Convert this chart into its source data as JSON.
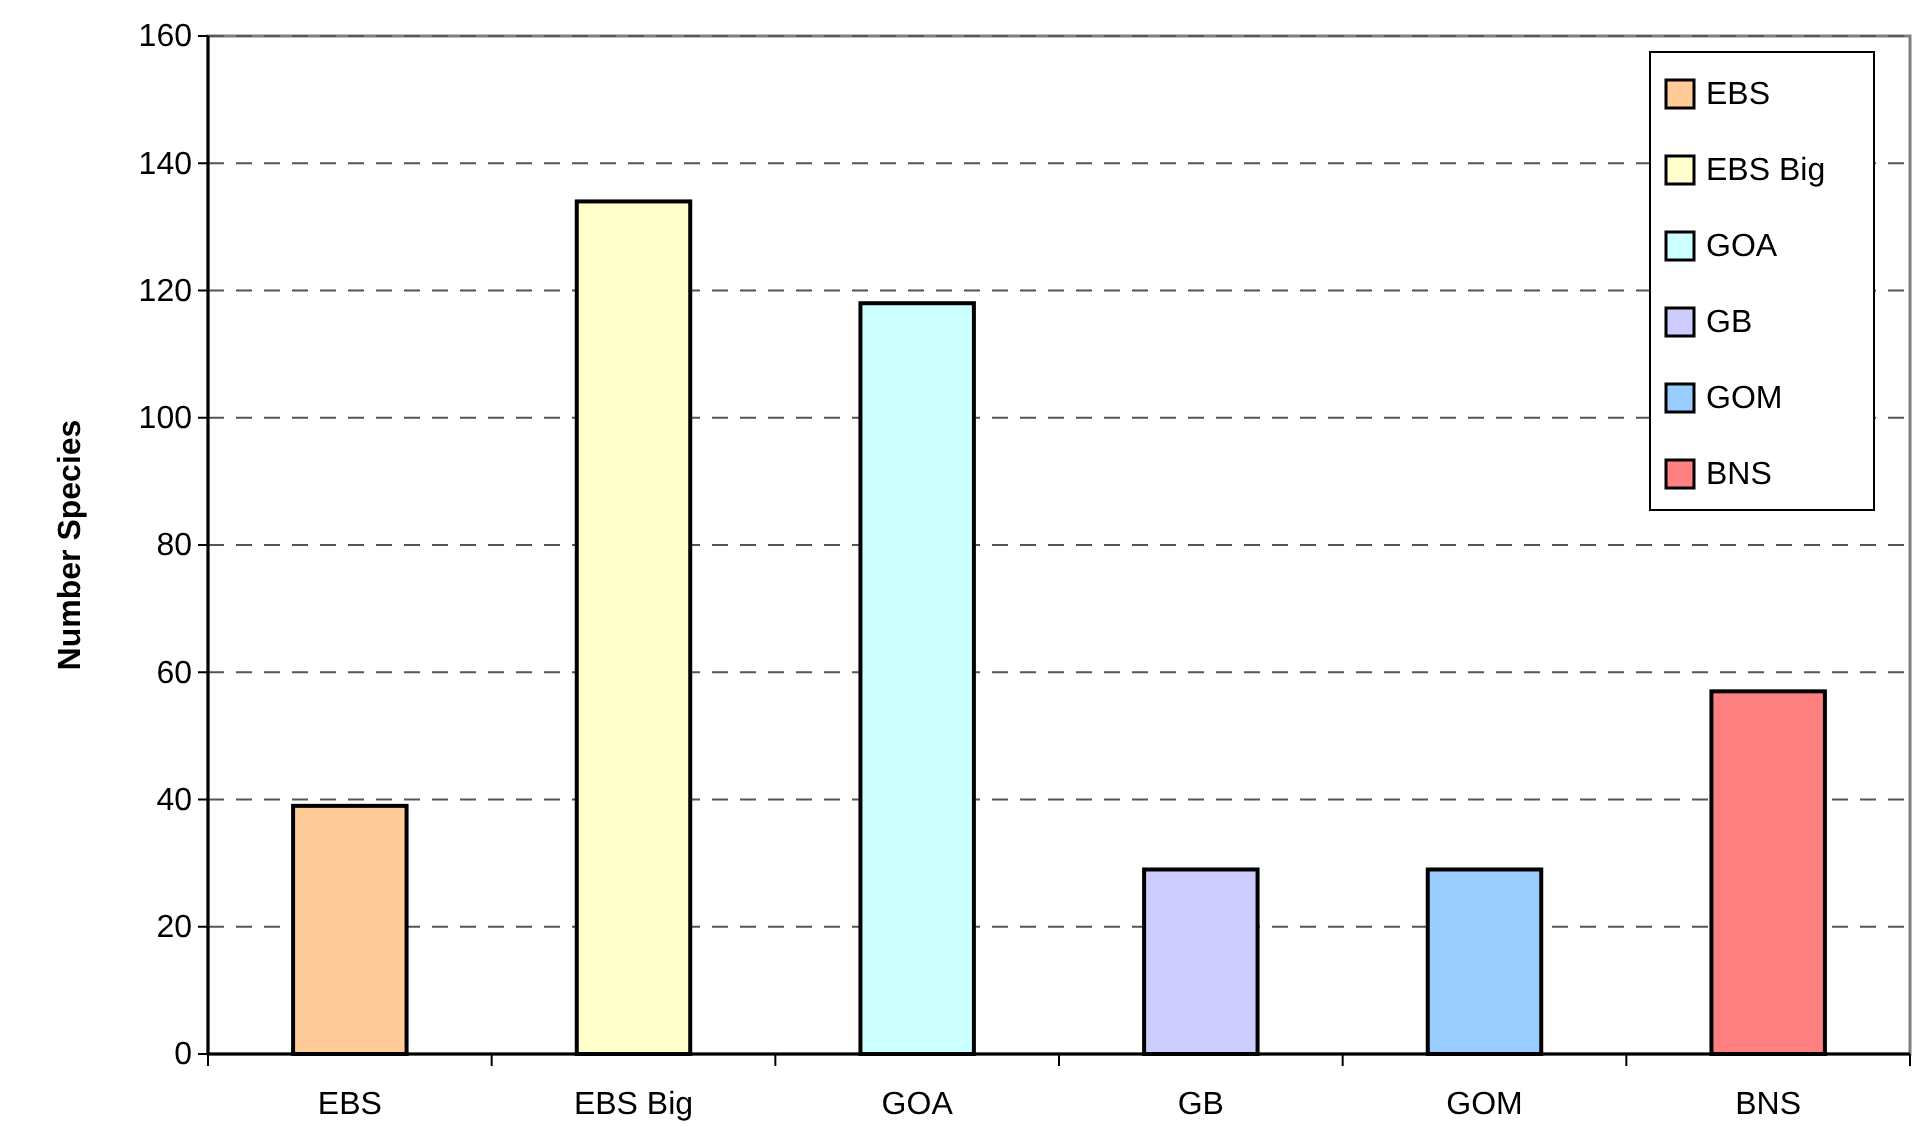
{
  "chart_data": {
    "type": "bar",
    "ylabel": "Number Species",
    "categories": [
      "EBS",
      "EBS Big",
      "GOA",
      "GB",
      "GOM",
      "BNS"
    ],
    "series": [
      {
        "name": "EBS",
        "color": "#ffcc99",
        "values": [
          39,
          null,
          null,
          null,
          null,
          null
        ]
      },
      {
        "name": "EBS Big",
        "color": "#ffffcc",
        "values": [
          null,
          134,
          null,
          null,
          null,
          null
        ]
      },
      {
        "name": "GOA",
        "color": "#ccffff",
        "values": [
          null,
          null,
          118,
          null,
          null,
          null
        ]
      },
      {
        "name": "GB",
        "color": "#ccccff",
        "values": [
          null,
          null,
          null,
          29,
          null,
          null
        ]
      },
      {
        "name": "GOM",
        "color": "#99ccff",
        "values": [
          null,
          null,
          null,
          null,
          29,
          null
        ]
      },
      {
        "name": "BNS",
        "color": "#ff8080",
        "values": [
          null,
          null,
          null,
          null,
          null,
          57
        ]
      }
    ],
    "ylim": [
      0,
      160
    ],
    "yticks": [
      0,
      20,
      40,
      60,
      80,
      100,
      120,
      140,
      160
    ],
    "grid": "y",
    "legend": "top right"
  }
}
